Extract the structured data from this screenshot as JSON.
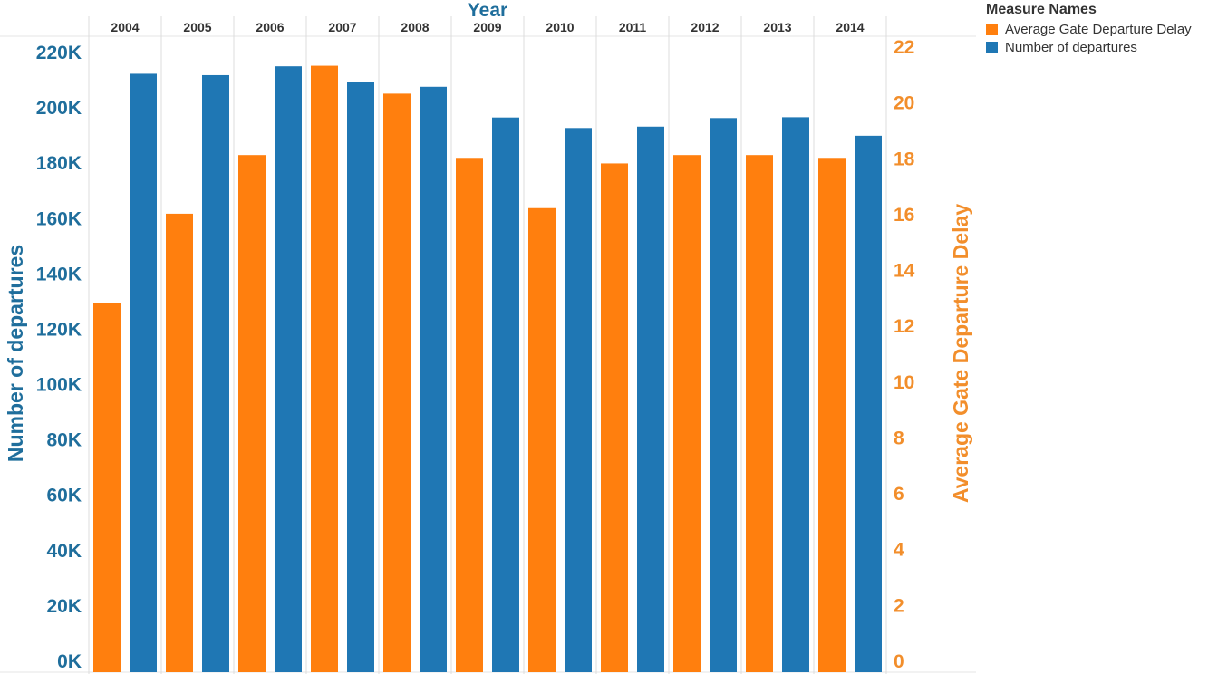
{
  "chart_data": {
    "type": "bar",
    "top_axis_title": "Year",
    "categories": [
      "2004",
      "2005",
      "2006",
      "2007",
      "2008",
      "2009",
      "2010",
      "2011",
      "2012",
      "2013",
      "2014"
    ],
    "series": [
      {
        "name": "Average Gate Departure Delay",
        "axis": "right",
        "color": "#ff7f0e",
        "values": [
          12.8,
          16.0,
          18.1,
          21.3,
          20.3,
          18.0,
          16.2,
          17.8,
          18.1,
          18.1,
          18.0
        ]
      },
      {
        "name": "Number of departures",
        "axis": "left",
        "color": "#1f77b4",
        "values": [
          212000,
          211500,
          214700,
          208900,
          207300,
          196200,
          192400,
          192900,
          196000,
          196300,
          189600
        ]
      }
    ],
    "left_axis": {
      "title": "Number of departures",
      "ylim": [
        0,
        220000
      ],
      "ticks": [
        0,
        20000,
        40000,
        60000,
        80000,
        100000,
        120000,
        140000,
        160000,
        180000,
        200000,
        220000
      ],
      "tick_labels": [
        "0K",
        "20K",
        "40K",
        "60K",
        "80K",
        "100K",
        "120K",
        "140K",
        "160K",
        "180K",
        "200K",
        "220K"
      ],
      "color": "#1f6e9c"
    },
    "right_axis": {
      "title": "Average Gate Departure Delay",
      "ylim": [
        0,
        22
      ],
      "ticks": [
        0,
        2,
        4,
        6,
        8,
        10,
        12,
        14,
        16,
        18,
        20,
        22
      ],
      "tick_labels": [
        "0",
        "2",
        "4",
        "6",
        "8",
        "10",
        "12",
        "14",
        "16",
        "18",
        "20",
        "22"
      ],
      "color": "#f28e2b"
    },
    "grid": false,
    "legend": {
      "title": "Measure Names",
      "placement": "top-right"
    }
  }
}
